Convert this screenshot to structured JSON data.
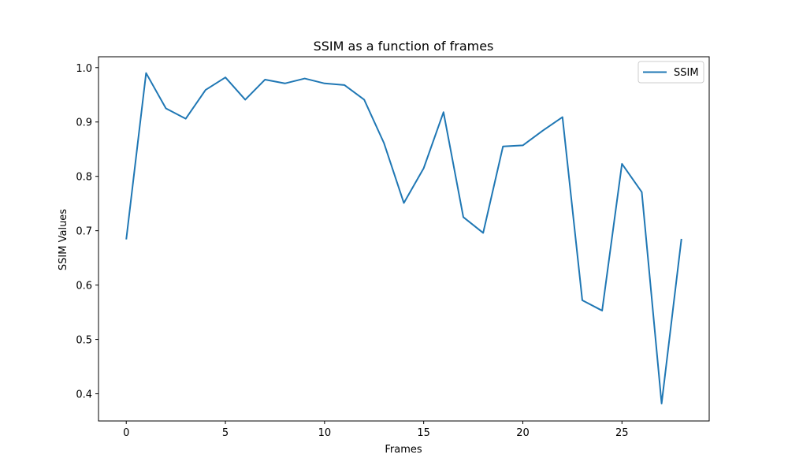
{
  "chart_data": {
    "type": "line",
    "title": "SSIM as a function of frames",
    "xlabel": "Frames",
    "ylabel": "SSIM Values",
    "xlim": [
      -1.4,
      29.4
    ],
    "ylim": [
      0.35,
      1.02
    ],
    "xticks": [
      0,
      5,
      10,
      15,
      20,
      25
    ],
    "yticks": [
      0.4,
      0.5,
      0.6,
      0.7,
      0.8,
      0.9,
      1.0
    ],
    "grid": false,
    "legend_position": "top-right",
    "series": [
      {
        "name": "SSIM",
        "color": "#1f77b4",
        "x": [
          0,
          1,
          2,
          3,
          4,
          5,
          6,
          7,
          8,
          9,
          10,
          11,
          12,
          13,
          14,
          15,
          16,
          17,
          18,
          19,
          20,
          21,
          22,
          23,
          24,
          25,
          26,
          27,
          28
        ],
        "y": [
          0.684,
          0.99,
          0.925,
          0.906,
          0.959,
          0.982,
          0.941,
          0.978,
          0.971,
          0.98,
          0.971,
          0.968,
          0.941,
          0.861,
          0.751,
          0.815,
          0.918,
          0.725,
          0.696,
          0.855,
          0.857,
          0.884,
          0.909,
          0.572,
          0.553,
          0.823,
          0.771,
          0.382,
          0.685
        ]
      }
    ]
  }
}
